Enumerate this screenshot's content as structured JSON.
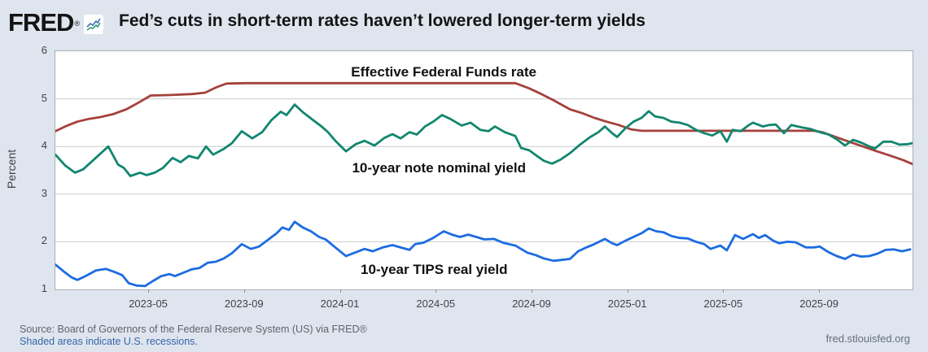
{
  "header": {
    "logo": "FRED",
    "logo_registered": "®",
    "title": "Fed’s cuts in short-term rates haven’t lowered longer-term yields"
  },
  "footer": {
    "source": "Source: Board of Governors of the Federal Reserve System (US) via FRED®",
    "recession_note": "Shaded areas indicate U.S. recessions.",
    "site": "fred.stlouisfed.org"
  },
  "colors": {
    "background": "#dfe5ee",
    "plot_background": "#ffffff",
    "plot_border": "#a9adb3",
    "gridline": "#c9c9c9",
    "effr_red": "#a5413c",
    "nominal_teal": "#12866f",
    "tips_blue": "#1c6ce0",
    "annotation_text": "#111111",
    "link_blue": "#3565a8"
  },
  "chart_data": {
    "type": "line",
    "title": "Fed’s cuts in short-term rates haven’t lowered longer-term yields",
    "xlabel": "",
    "ylabel": "Percent",
    "ylim": [
      1,
      6
    ],
    "yticks": [
      1,
      2,
      3,
      4,
      5,
      6
    ],
    "grid": "horizontal",
    "legend": "in-plot text annotations",
    "x_unit": "months since 2023-01-01 (decimal)",
    "x_domain": [
      0.09,
      35.87
    ],
    "xticks": [
      {
        "pos": 4,
        "label": "2023-05"
      },
      {
        "pos": 8,
        "label": "2023-09"
      },
      {
        "pos": 12,
        "label": "2024-01"
      },
      {
        "pos": 16,
        "label": "2024-05"
      },
      {
        "pos": 20,
        "label": "2024-09"
      },
      {
        "pos": 24,
        "label": "2025-01"
      },
      {
        "pos": 28,
        "label": "2025-05"
      },
      {
        "pos": 32,
        "label": "2025-09"
      }
    ],
    "annotations": [
      {
        "id": "effr-label",
        "text": "Effective Federal Funds rate",
        "x": 16.3,
        "y": 5.57
      },
      {
        "id": "nominal-label",
        "text": "10-year note nominal yield",
        "x": 16.1,
        "y": 3.56
      },
      {
        "id": "tips-label",
        "text": "10-year TIPS real yield",
        "x": 15.9,
        "y": 1.43
      }
    ],
    "series": [
      {
        "id": "effr",
        "name": "Effective Federal Funds rate",
        "color": "#a5413c",
        "points": [
          [
            0.09,
            4.32
          ],
          [
            0.5,
            4.42
          ],
          [
            1.0,
            4.52
          ],
          [
            1.5,
            4.58
          ],
          [
            2.0,
            4.62
          ],
          [
            2.5,
            4.68
          ],
          [
            3.05,
            4.78
          ],
          [
            3.56,
            4.92
          ],
          [
            4.07,
            5.07
          ],
          [
            4.9,
            5.08
          ],
          [
            5.8,
            5.1
          ],
          [
            6.34,
            5.13
          ],
          [
            6.8,
            5.24
          ],
          [
            7.23,
            5.32
          ],
          [
            8.0,
            5.33
          ],
          [
            19.29,
            5.33
          ],
          [
            19.87,
            5.22
          ],
          [
            20.38,
            5.1
          ],
          [
            20.89,
            4.97
          ],
          [
            21.57,
            4.78
          ],
          [
            22.08,
            4.7
          ],
          [
            22.59,
            4.6
          ],
          [
            23.1,
            4.52
          ],
          [
            23.61,
            4.45
          ],
          [
            24.12,
            4.36
          ],
          [
            24.56,
            4.33
          ],
          [
            31.76,
            4.33
          ],
          [
            32.1,
            4.3
          ],
          [
            32.61,
            4.21
          ],
          [
            33.22,
            4.1
          ],
          [
            33.8,
            4.0
          ],
          [
            34.38,
            3.9
          ],
          [
            34.99,
            3.8
          ],
          [
            35.5,
            3.71
          ],
          [
            35.87,
            3.63
          ]
        ]
      },
      {
        "id": "nominal",
        "name": "10-year note nominal yield",
        "color": "#12866f",
        "points": [
          [
            0.09,
            3.83
          ],
          [
            0.5,
            3.6
          ],
          [
            0.91,
            3.45
          ],
          [
            1.25,
            3.52
          ],
          [
            1.69,
            3.72
          ],
          [
            2.3,
            4.0
          ],
          [
            2.71,
            3.62
          ],
          [
            2.95,
            3.55
          ],
          [
            3.22,
            3.38
          ],
          [
            3.63,
            3.45
          ],
          [
            3.9,
            3.4
          ],
          [
            4.24,
            3.45
          ],
          [
            4.58,
            3.55
          ],
          [
            4.98,
            3.76
          ],
          [
            5.32,
            3.67
          ],
          [
            5.66,
            3.8
          ],
          [
            6.04,
            3.75
          ],
          [
            6.38,
            4.0
          ],
          [
            6.68,
            3.83
          ],
          [
            7.12,
            3.95
          ],
          [
            7.46,
            4.07
          ],
          [
            7.87,
            4.32
          ],
          [
            8.31,
            4.17
          ],
          [
            8.72,
            4.3
          ],
          [
            9.1,
            4.55
          ],
          [
            9.5,
            4.73
          ],
          [
            9.74,
            4.66
          ],
          [
            10.08,
            4.88
          ],
          [
            10.42,
            4.72
          ],
          [
            10.86,
            4.55
          ],
          [
            11.2,
            4.42
          ],
          [
            11.47,
            4.3
          ],
          [
            11.78,
            4.12
          ],
          [
            12.22,
            3.9
          ],
          [
            12.63,
            4.05
          ],
          [
            13.0,
            4.12
          ],
          [
            13.41,
            4.02
          ],
          [
            13.82,
            4.18
          ],
          [
            14.16,
            4.26
          ],
          [
            14.5,
            4.17
          ],
          [
            14.87,
            4.3
          ],
          [
            15.18,
            4.25
          ],
          [
            15.52,
            4.42
          ],
          [
            15.86,
            4.52
          ],
          [
            16.23,
            4.66
          ],
          [
            16.57,
            4.58
          ],
          [
            17.05,
            4.44
          ],
          [
            17.42,
            4.5
          ],
          [
            17.83,
            4.35
          ],
          [
            18.17,
            4.32
          ],
          [
            18.44,
            4.42
          ],
          [
            18.85,
            4.3
          ],
          [
            19.29,
            4.22
          ],
          [
            19.53,
            3.97
          ],
          [
            19.87,
            3.92
          ],
          [
            20.14,
            3.82
          ],
          [
            20.48,
            3.7
          ],
          [
            20.82,
            3.64
          ],
          [
            21.16,
            3.72
          ],
          [
            21.57,
            3.86
          ],
          [
            21.97,
            4.03
          ],
          [
            22.42,
            4.2
          ],
          [
            22.76,
            4.3
          ],
          [
            23.03,
            4.42
          ],
          [
            23.33,
            4.28
          ],
          [
            23.54,
            4.2
          ],
          [
            23.88,
            4.38
          ],
          [
            24.22,
            4.52
          ],
          [
            24.56,
            4.6
          ],
          [
            24.86,
            4.74
          ],
          [
            25.13,
            4.63
          ],
          [
            25.47,
            4.6
          ],
          [
            25.81,
            4.52
          ],
          [
            26.15,
            4.5
          ],
          [
            26.49,
            4.45
          ],
          [
            26.83,
            4.35
          ],
          [
            27.17,
            4.28
          ],
          [
            27.51,
            4.23
          ],
          [
            27.85,
            4.32
          ],
          [
            28.12,
            4.1
          ],
          [
            28.36,
            4.35
          ],
          [
            28.7,
            4.32
          ],
          [
            29.04,
            4.45
          ],
          [
            29.21,
            4.5
          ],
          [
            29.62,
            4.42
          ],
          [
            29.89,
            4.45
          ],
          [
            30.16,
            4.46
          ],
          [
            30.5,
            4.28
          ],
          [
            30.81,
            4.45
          ],
          [
            31.25,
            4.4
          ],
          [
            31.59,
            4.37
          ],
          [
            32.0,
            4.3
          ],
          [
            32.37,
            4.25
          ],
          [
            32.71,
            4.15
          ],
          [
            33.05,
            4.02
          ],
          [
            33.39,
            4.14
          ],
          [
            33.73,
            4.08
          ],
          [
            34.07,
            4.0
          ],
          [
            34.31,
            3.96
          ],
          [
            34.65,
            4.1
          ],
          [
            34.99,
            4.1
          ],
          [
            35.33,
            4.04
          ],
          [
            35.67,
            4.05
          ],
          [
            35.87,
            4.07
          ]
        ]
      },
      {
        "id": "tips",
        "name": "10-year TIPS real yield",
        "color": "#1c6ce0",
        "points": [
          [
            0.09,
            1.52
          ],
          [
            0.43,
            1.38
          ],
          [
            0.77,
            1.25
          ],
          [
            1.01,
            1.2
          ],
          [
            1.35,
            1.28
          ],
          [
            1.79,
            1.4
          ],
          [
            2.2,
            1.43
          ],
          [
            2.54,
            1.37
          ],
          [
            2.88,
            1.3
          ],
          [
            3.15,
            1.13
          ],
          [
            3.49,
            1.08
          ],
          [
            3.83,
            1.07
          ],
          [
            4.17,
            1.18
          ],
          [
            4.51,
            1.28
          ],
          [
            4.85,
            1.32
          ],
          [
            5.09,
            1.28
          ],
          [
            5.43,
            1.35
          ],
          [
            5.77,
            1.42
          ],
          [
            6.11,
            1.45
          ],
          [
            6.45,
            1.56
          ],
          [
            6.78,
            1.58
          ],
          [
            7.12,
            1.65
          ],
          [
            7.46,
            1.76
          ],
          [
            7.87,
            1.95
          ],
          [
            8.25,
            1.85
          ],
          [
            8.59,
            1.9
          ],
          [
            8.99,
            2.05
          ],
          [
            9.33,
            2.18
          ],
          [
            9.57,
            2.3
          ],
          [
            9.84,
            2.25
          ],
          [
            10.08,
            2.42
          ],
          [
            10.42,
            2.3
          ],
          [
            10.76,
            2.22
          ],
          [
            11.1,
            2.1
          ],
          [
            11.37,
            2.05
          ],
          [
            11.78,
            1.88
          ],
          [
            12.22,
            1.7
          ],
          [
            12.63,
            1.78
          ],
          [
            13.0,
            1.85
          ],
          [
            13.34,
            1.8
          ],
          [
            13.75,
            1.88
          ],
          [
            14.16,
            1.93
          ],
          [
            14.5,
            1.88
          ],
          [
            14.87,
            1.83
          ],
          [
            15.11,
            1.95
          ],
          [
            15.45,
            1.98
          ],
          [
            15.86,
            2.08
          ],
          [
            16.3,
            2.22
          ],
          [
            16.64,
            2.15
          ],
          [
            16.98,
            2.1
          ],
          [
            17.32,
            2.15
          ],
          [
            17.66,
            2.1
          ],
          [
            18.0,
            2.05
          ],
          [
            18.4,
            2.06
          ],
          [
            18.78,
            1.98
          ],
          [
            19.29,
            1.92
          ],
          [
            19.8,
            1.77
          ],
          [
            20.14,
            1.72
          ],
          [
            20.48,
            1.65
          ],
          [
            20.89,
            1.6
          ],
          [
            21.23,
            1.62
          ],
          [
            21.57,
            1.64
          ],
          [
            21.91,
            1.8
          ],
          [
            22.25,
            1.88
          ],
          [
            22.59,
            1.95
          ],
          [
            23.03,
            2.06
          ],
          [
            23.33,
            1.97
          ],
          [
            23.54,
            1.93
          ],
          [
            23.88,
            2.02
          ],
          [
            24.22,
            2.1
          ],
          [
            24.56,
            2.18
          ],
          [
            24.86,
            2.28
          ],
          [
            25.17,
            2.22
          ],
          [
            25.47,
            2.2
          ],
          [
            25.81,
            2.12
          ],
          [
            26.15,
            2.08
          ],
          [
            26.49,
            2.07
          ],
          [
            26.83,
            2.0
          ],
          [
            27.17,
            1.95
          ],
          [
            27.44,
            1.85
          ],
          [
            27.85,
            1.92
          ],
          [
            28.12,
            1.82
          ],
          [
            28.46,
            2.14
          ],
          [
            28.8,
            2.06
          ],
          [
            29.21,
            2.16
          ],
          [
            29.45,
            2.08
          ],
          [
            29.72,
            2.14
          ],
          [
            30.06,
            2.02
          ],
          [
            30.3,
            1.97
          ],
          [
            30.64,
            2.0
          ],
          [
            30.98,
            1.99
          ],
          [
            31.42,
            1.88
          ],
          [
            31.76,
            1.88
          ],
          [
            32.0,
            1.9
          ],
          [
            32.37,
            1.78
          ],
          [
            32.71,
            1.7
          ],
          [
            33.05,
            1.64
          ],
          [
            33.39,
            1.73
          ],
          [
            33.73,
            1.69
          ],
          [
            34.07,
            1.7
          ],
          [
            34.41,
            1.75
          ],
          [
            34.75,
            1.83
          ],
          [
            35.09,
            1.84
          ],
          [
            35.43,
            1.8
          ],
          [
            35.77,
            1.84
          ]
        ]
      }
    ]
  }
}
